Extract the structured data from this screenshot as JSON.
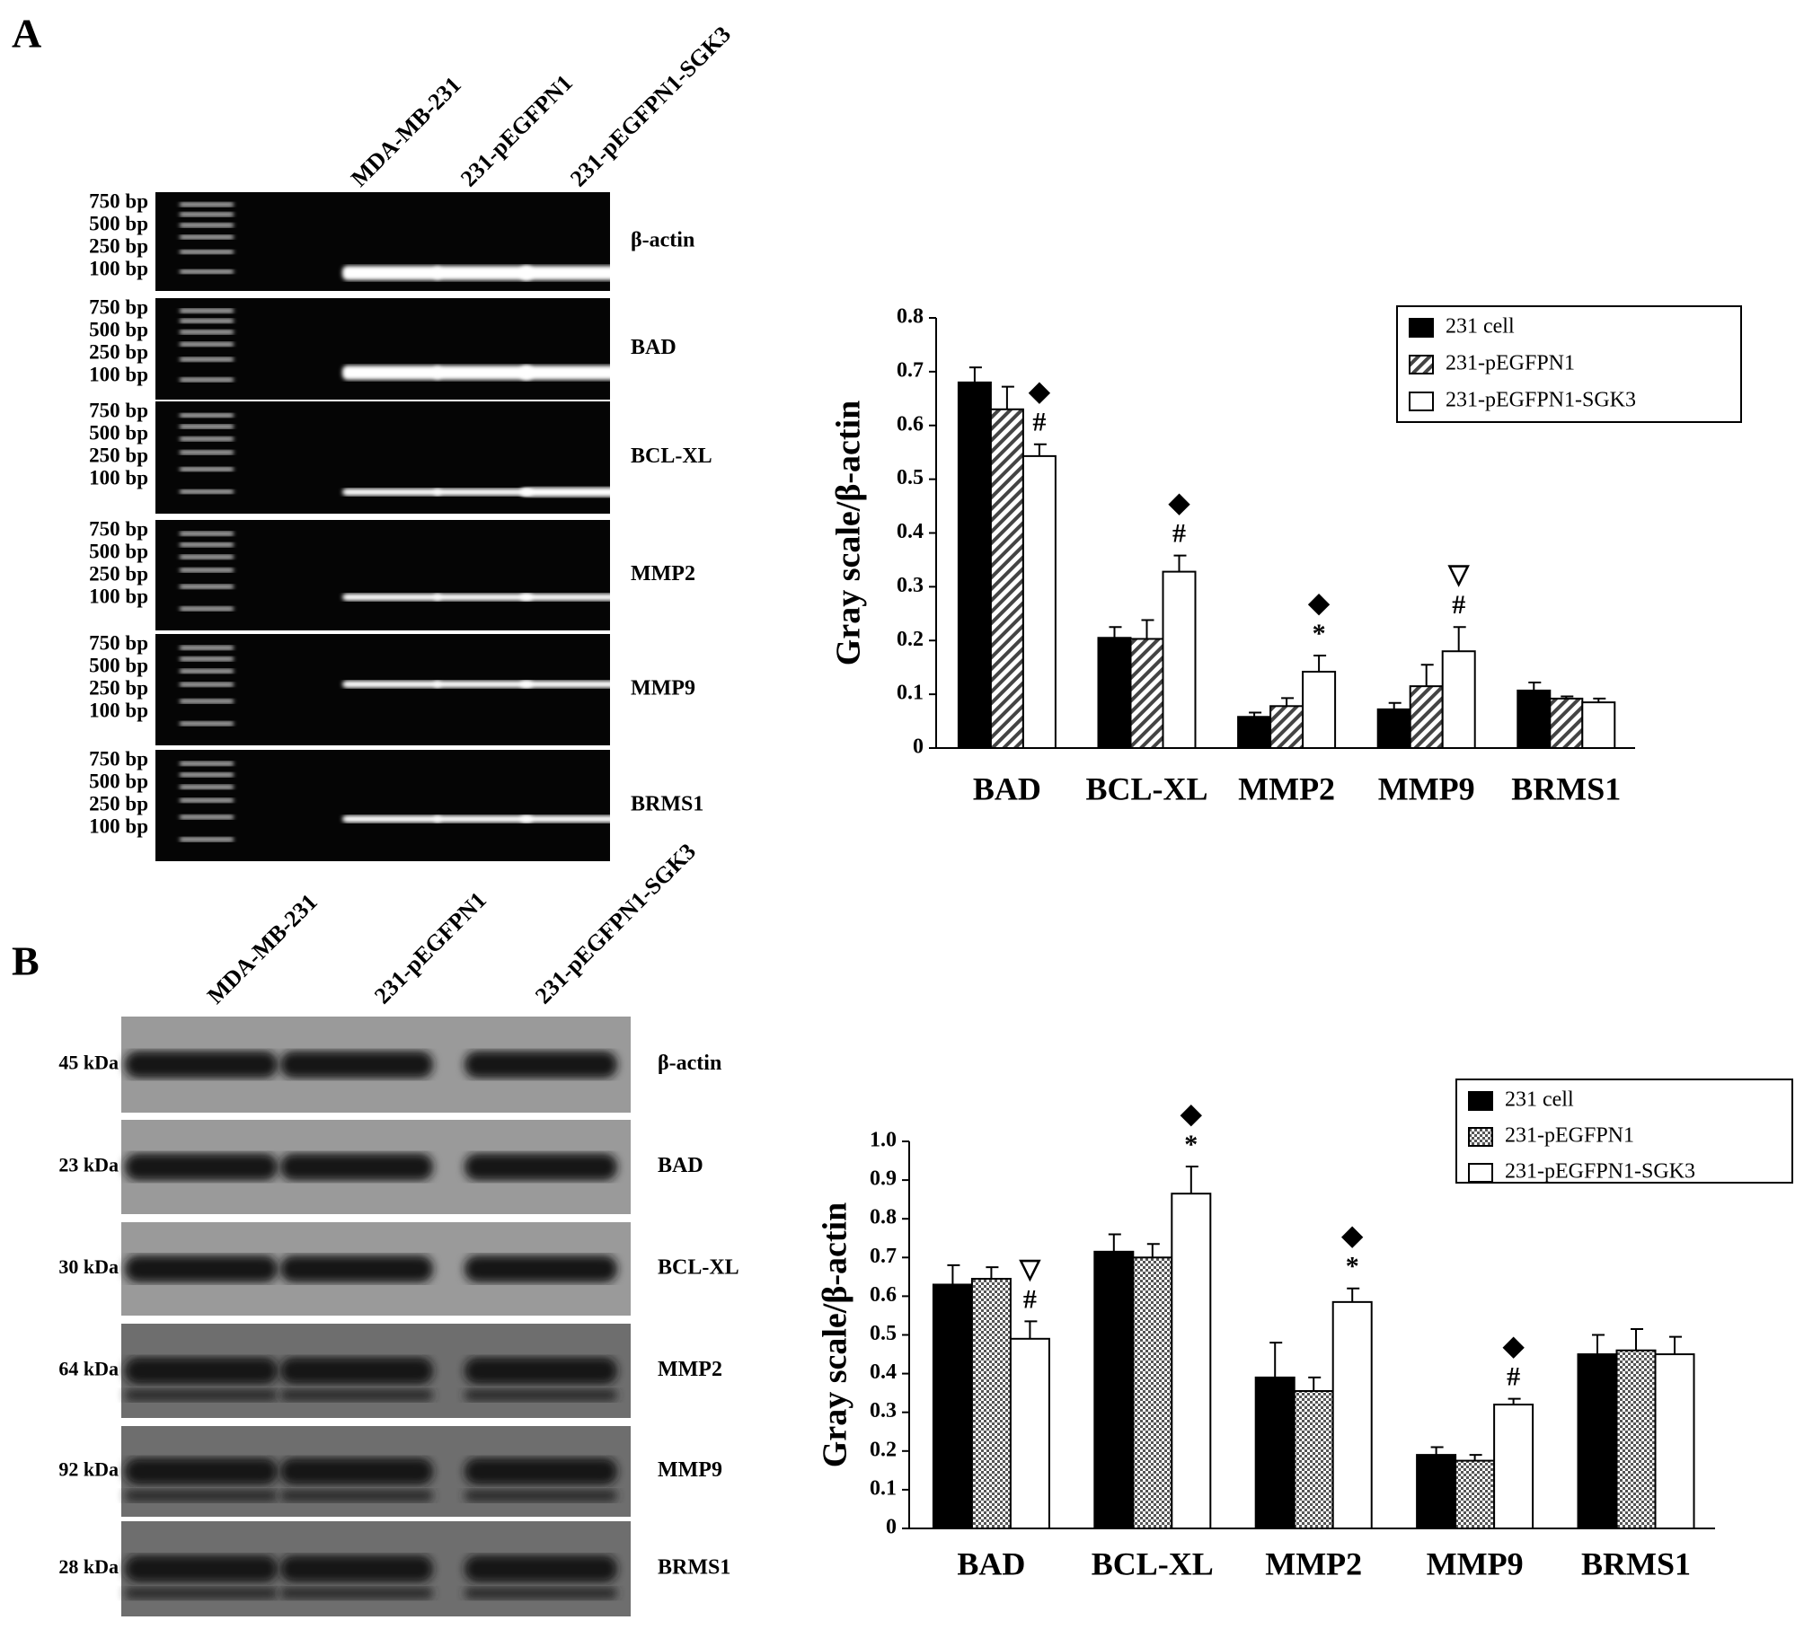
{
  "panel_labels": [
    "A",
    "B"
  ],
  "gel_a": {
    "lanes": [
      "MDA-MB-231",
      "231-pEGFPN1",
      "231-pEGFPN1-SGK3"
    ],
    "ladder": [
      "750 bp",
      "500 bp",
      "250 bp",
      "100 bp"
    ],
    "genes": [
      "β-actin",
      "BAD",
      "BCL-XL",
      "MMP2",
      "MMP9",
      "BRMS1"
    ]
  },
  "blot_b": {
    "lanes": [
      "MDA-MB-231",
      "231-pEGFPN1",
      "231-pEGFPN1-SGK3"
    ],
    "sizes": [
      "45 kDa",
      "23 kDa",
      "30 kDa",
      "64 kDa",
      "92 kDa",
      "28 kDa"
    ],
    "proteins": [
      "β-actin",
      "BAD",
      "BCL-XL",
      "MMP2",
      "MMP9",
      "BRMS1"
    ]
  },
  "chart_data": [
    {
      "type": "bar",
      "y_label": "Gray scale/β-actin",
      "categories": [
        "BAD",
        "BCL-XL",
        "MMP2",
        "MMP9",
        "BRMS1"
      ],
      "series": [
        {
          "name": "231 cell",
          "color": "#000000",
          "pattern": "solid",
          "values": [
            0.68,
            0.205,
            0.058,
            0.072,
            0.107
          ],
          "errors": [
            0.028,
            0.02,
            0.008,
            0.012,
            0.015
          ]
        },
        {
          "name": "231-pEGFPN1",
          "color": "#ffffff",
          "pattern": "hatch",
          "values": [
            0.63,
            0.203,
            0.078,
            0.115,
            0.092
          ],
          "errors": [
            0.042,
            0.035,
            0.015,
            0.04,
            0.004
          ]
        },
        {
          "name": "231-pEGFPN1-SGK3",
          "color": "#ffffff",
          "pattern": "none",
          "values": [
            0.543,
            0.328,
            0.142,
            0.18,
            0.085
          ],
          "errors": [
            0.022,
            0.03,
            0.03,
            0.045,
            0.007
          ]
        }
      ],
      "significance": [
        [
          "◆",
          "#"
        ],
        [
          "◆",
          "#"
        ],
        [
          "◆",
          "*"
        ],
        [
          "▽",
          "#"
        ],
        null
      ],
      "ylim": [
        0,
        0.8
      ],
      "yticks": [
        0,
        0.1,
        0.2,
        0.3,
        0.4,
        0.5,
        0.6,
        0.7,
        0.8
      ],
      "legend": "upper right"
    },
    {
      "type": "bar",
      "y_label": "Gray scale/β-actin",
      "categories": [
        "BAD",
        "BCL-XL",
        "MMP2",
        "MMP9",
        "BRMS1"
      ],
      "series": [
        {
          "name": "231 cell",
          "color": "#000000",
          "pattern": "solid",
          "values": [
            0.63,
            0.715,
            0.39,
            0.19,
            0.45
          ],
          "errors": [
            0.05,
            0.045,
            0.09,
            0.02,
            0.05
          ]
        },
        {
          "name": "231-pEGFPN1",
          "color": "#ffffff",
          "pattern": "checker",
          "values": [
            0.645,
            0.7,
            0.355,
            0.175,
            0.46
          ],
          "errors": [
            0.03,
            0.035,
            0.035,
            0.015,
            0.055
          ]
        },
        {
          "name": "231-pEGFPN1-SGK3",
          "color": "#ffffff",
          "pattern": "none",
          "values": [
            0.49,
            0.865,
            0.585,
            0.32,
            0.45
          ],
          "errors": [
            0.045,
            0.07,
            0.035,
            0.015,
            0.045
          ]
        }
      ],
      "significance": [
        [
          "▽",
          "#"
        ],
        [
          "◆",
          "*"
        ],
        [
          "◆",
          "*"
        ],
        [
          "◆",
          "#"
        ],
        null
      ],
      "ylim": [
        0,
        1
      ],
      "yticks": [
        0,
        0.1,
        0.2,
        0.3,
        0.4,
        0.5,
        0.6,
        0.7,
        0.8,
        0.9,
        {
          "value": 1,
          "label": "1.0"
        }
      ],
      "legend": "upper right"
    }
  ]
}
